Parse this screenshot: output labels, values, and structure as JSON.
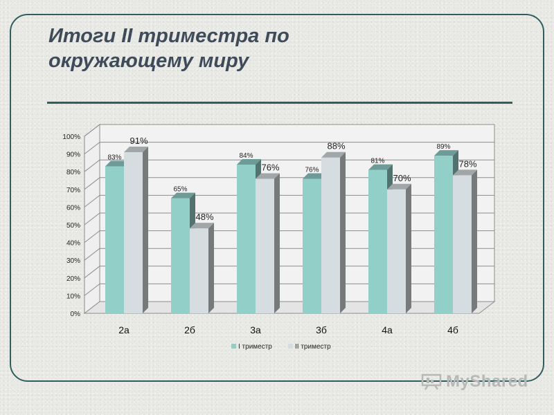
{
  "slide": {
    "title": "Итоги II триместра  по окружающему миру",
    "watermark": "MyShared",
    "watermark_icon": "presentation-board-icon"
  },
  "chart_data": {
    "type": "bar",
    "title": "",
    "xlabel": "",
    "ylabel": "",
    "categories": [
      "2а",
      "2б",
      "3а",
      "3б",
      "4а",
      "4б"
    ],
    "series": [
      {
        "name": "I триместр",
        "values": [
          83,
          65,
          84,
          76,
          81,
          89
        ],
        "labels": [
          "83%",
          "65%",
          "84%",
          "76%",
          "81%",
          "89%"
        ],
        "color": "#93cfc9"
      },
      {
        "name": "II триместр",
        "values": [
          91,
          48,
          76,
          88,
          70,
          78
        ],
        "labels": [
          "91%",
          "48%",
          "76%",
          "88%",
          "70%",
          "78%"
        ],
        "color": "#d6dde0"
      }
    ],
    "ylim": [
      0,
      100
    ],
    "yticks": [
      "0%",
      "10%",
      "20%",
      "30%",
      "40%",
      "50%",
      "60%",
      "70%",
      "80%",
      "90%",
      "100%"
    ],
    "grid": true,
    "legend": "bottom"
  }
}
